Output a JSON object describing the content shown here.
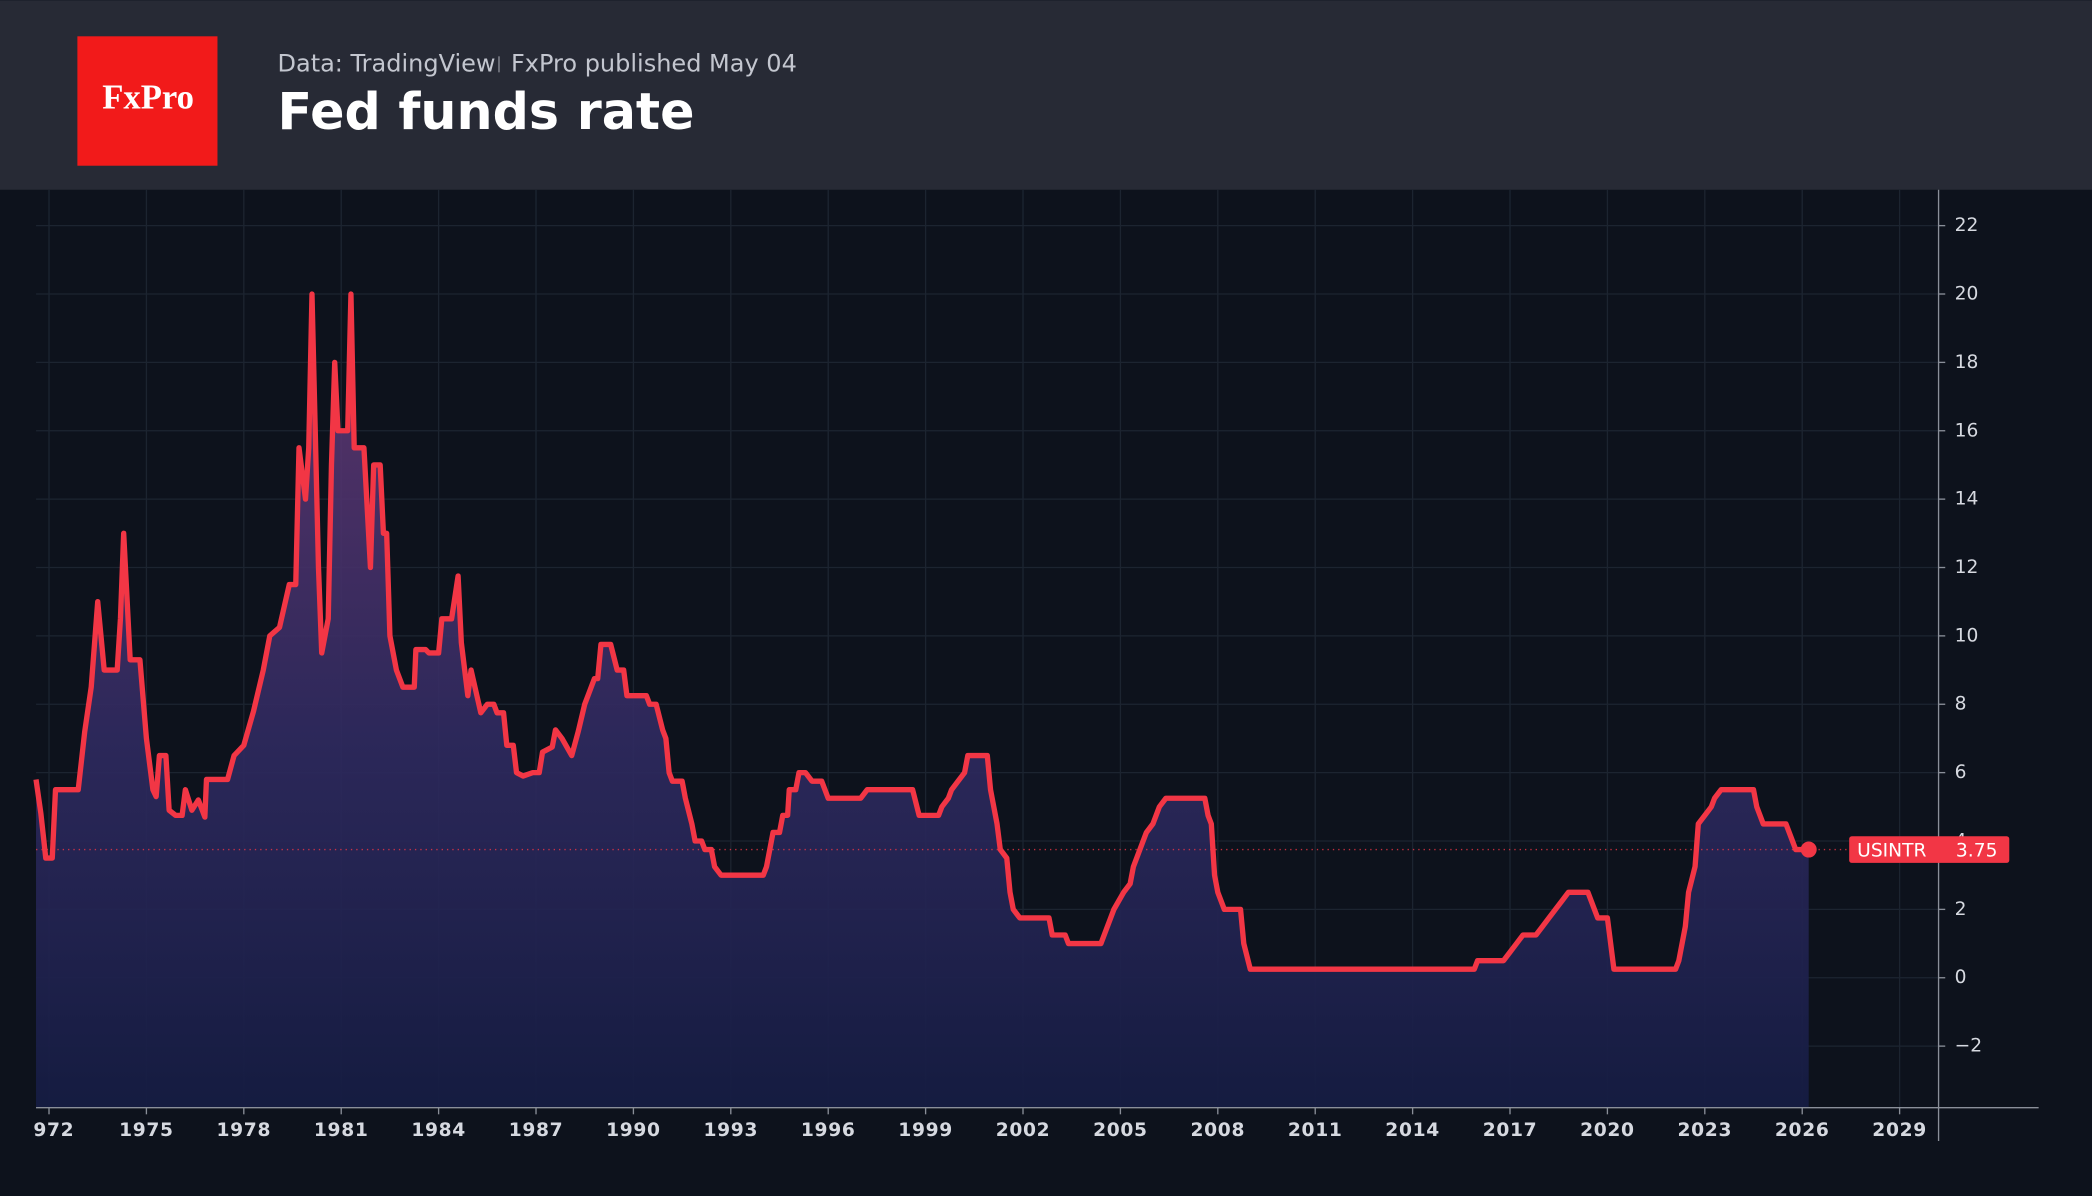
{
  "header": {
    "logo": "FxPro",
    "source": "Data: TradingView",
    "published": "FxPro published May 04",
    "title": "Fed funds rate"
  },
  "chart_data": {
    "type": "line",
    "series": [
      {
        "name": "USINTR",
        "color": "#f23645",
        "x": [
          1971.6,
          1971.75,
          1971.9,
          1972.1,
          1972.2,
          1972.9,
          1973.1,
          1973.3,
          1973.5,
          1973.7,
          1974.1,
          1974.2,
          1974.3,
          1974.5,
          1974.8,
          1975.0,
          1975.2,
          1975.3,
          1975.4,
          1975.6,
          1975.7,
          1975.9,
          1976.1,
          1976.2,
          1976.4,
          1976.6,
          1976.8,
          1976.85,
          1977.5,
          1977.7,
          1978.0,
          1978.3,
          1978.6,
          1978.8,
          1979.1,
          1979.4,
          1979.6,
          1979.7,
          1979.9,
          1980.0,
          1980.1,
          1980.3,
          1980.4,
          1980.6,
          1980.7,
          1980.8,
          1980.9,
          1981.2,
          1981.3,
          1981.4,
          1981.7,
          1981.9,
          1982.0,
          1982.2,
          1982.3,
          1982.4,
          1982.5,
          1982.7,
          1982.9,
          1983.25,
          1983.3,
          1983.6,
          1983.7,
          1984.0,
          1984.1,
          1984.4,
          1984.6,
          1984.7,
          1984.9,
          1985.0,
          1985.3,
          1985.5,
          1985.7,
          1985.8,
          1986.0,
          1986.1,
          1986.3,
          1986.4,
          1986.6,
          1986.9,
          1987.1,
          1987.2,
          1987.5,
          1987.6,
          1987.8,
          1988.1,
          1988.3,
          1988.5,
          1988.6,
          1988.8,
          1988.9,
          1989.0,
          1989.3,
          1989.5,
          1989.7,
          1989.8,
          1990.4,
          1990.5,
          1990.7,
          1990.9,
          1991.0,
          1991.1,
          1991.2,
          1991.5,
          1991.6,
          1991.8,
          1991.9,
          1992.1,
          1992.2,
          1992.4,
          1992.5,
          1992.7,
          1994.0,
          1994.1,
          1994.3,
          1994.5,
          1994.6,
          1994.75,
          1994.8,
          1995.0,
          1995.1,
          1995.3,
          1995.5,
          1995.8,
          1996.0,
          1997.0,
          1997.2,
          1998.6,
          1998.8,
          1999.4,
          1999.5,
          1999.7,
          1999.8,
          2000.0,
          2000.2,
          2000.3,
          2000.9,
          2001.0,
          2001.1,
          2001.2,
          2001.3,
          2001.5,
          2001.6,
          2001.7,
          2001.9,
          2002.8,
          2002.9,
          2003.3,
          2003.4,
          2004.4,
          2004.6,
          2004.8,
          2005.1,
          2005.3,
          2005.4,
          2005.6,
          2005.8,
          2006.0,
          2006.2,
          2006.4,
          2007.6,
          2007.7,
          2007.8,
          2007.9,
          2008.0,
          2008.2,
          2008.7,
          2008.8,
          2009.0,
          2015.9,
          2016.0,
          2016.8,
          2017.0,
          2017.2,
          2017.4,
          2017.8,
          2018.0,
          2018.2,
          2018.4,
          2018.6,
          2018.8,
          2019.4,
          2019.5,
          2019.7,
          2020.0,
          2020.2,
          2022.1,
          2022.2,
          2022.4,
          2022.5,
          2022.7,
          2022.8,
          2023.0,
          2023.2,
          2023.3,
          2023.5,
          2024.5,
          2024.6,
          2024.8,
          2025.5,
          2025.7,
          2025.8,
          2026.2
        ],
        "values": [
          5.8,
          4.8,
          3.5,
          3.5,
          5.5,
          5.5,
          7.2,
          8.5,
          11.0,
          9.0,
          9.0,
          10.5,
          13.0,
          9.3,
          9.3,
          7.0,
          5.5,
          5.3,
          6.5,
          6.5,
          4.9,
          4.75,
          4.75,
          5.5,
          4.9,
          5.2,
          4.7,
          5.8,
          5.8,
          6.5,
          6.8,
          7.8,
          9.0,
          10.0,
          10.25,
          11.5,
          11.5,
          15.5,
          14.0,
          15.5,
          20.0,
          12.0,
          9.5,
          10.5,
          15.0,
          18.0,
          16.0,
          16.0,
          20.0,
          15.5,
          15.5,
          12.0,
          15.0,
          15.0,
          13.0,
          13.0,
          10.0,
          9.0,
          8.5,
          8.5,
          9.6,
          9.6,
          9.5,
          9.5,
          10.5,
          10.5,
          11.75,
          9.8,
          8.25,
          9.0,
          7.75,
          8.0,
          8.0,
          7.75,
          7.75,
          6.8,
          6.8,
          6.0,
          5.9,
          6.0,
          6.0,
          6.6,
          6.75,
          7.25,
          7.0,
          6.5,
          7.2,
          8.0,
          8.25,
          8.75,
          8.75,
          9.75,
          9.75,
          9.0,
          9.0,
          8.25,
          8.25,
          8.0,
          8.0,
          7.25,
          7.0,
          6.0,
          5.75,
          5.75,
          5.25,
          4.5,
          4.0,
          4.0,
          3.75,
          3.75,
          3.25,
          3.0,
          3.0,
          3.25,
          4.25,
          4.25,
          4.75,
          4.75,
          5.5,
          5.5,
          6.0,
          6.0,
          5.75,
          5.75,
          5.25,
          5.25,
          5.5,
          5.5,
          4.75,
          4.75,
          5.0,
          5.25,
          5.5,
          5.75,
          6.0,
          6.5,
          6.5,
          5.5,
          5.0,
          4.5,
          3.75,
          3.5,
          2.5,
          2.0,
          1.75,
          1.75,
          1.25,
          1.25,
          1.0,
          1.0,
          1.5,
          2.0,
          2.5,
          2.75,
          3.25,
          3.75,
          4.25,
          4.5,
          5.0,
          5.25,
          5.25,
          4.75,
          4.5,
          3.0,
          2.5,
          2.0,
          2.0,
          1.0,
          0.25,
          0.25,
          0.5,
          0.5,
          0.75,
          1.0,
          1.25,
          1.25,
          1.5,
          1.75,
          2.0,
          2.25,
          2.5,
          2.5,
          2.25,
          1.75,
          1.75,
          0.25,
          0.25,
          0.5,
          1.5,
          2.5,
          3.25,
          4.5,
          4.75,
          5.0,
          5.25,
          5.5,
          5.5,
          5.0,
          4.5,
          4.5,
          4.0,
          3.75,
          3.75
        ]
      }
    ],
    "last_value": {
      "name": "USINTR",
      "value": 3.75
    },
    "xlim": [
      1971.6,
      2030.2
    ],
    "xticks": [
      {
        "value": 1972,
        "label": "972"
      },
      1975,
      1978,
      1981,
      1984,
      1987,
      1990,
      1993,
      1996,
      1999,
      2002,
      2005,
      2008,
      2011,
      2014,
      2017,
      2020,
      2023,
      2026,
      2029
    ],
    "ylim": [
      -3.8,
      23.05
    ],
    "yticks": [
      {
        "value": -2,
        "label": "−2"
      },
      0,
      2,
      4,
      6,
      8,
      10,
      12,
      14,
      16,
      18,
      20,
      22
    ],
    "grid": true
  }
}
